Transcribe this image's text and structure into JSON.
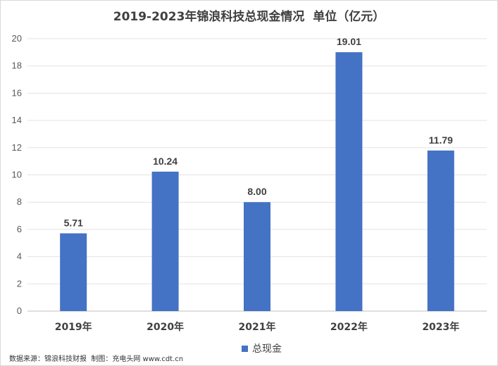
{
  "chart_data": {
    "type": "bar",
    "title": "2019-2023年锦浪科技总现金情况  单位（亿元）",
    "categories": [
      "2019年",
      "2020年",
      "2021年",
      "2022年",
      "2023年"
    ],
    "series": [
      {
        "name": "总现金",
        "values": [
          5.71,
          10.24,
          8.0,
          19.01,
          11.79
        ]
      }
    ],
    "data_labels": [
      "5.71",
      "10.24",
      "8.00",
      "19.01",
      "11.79"
    ],
    "ylim": [
      0,
      20
    ],
    "yticks": [
      0,
      2,
      4,
      6,
      8,
      10,
      12,
      14,
      16,
      18,
      20
    ],
    "grid": true,
    "legend_position": "bottom",
    "bar_color": "#4472C4"
  },
  "footer": {
    "source": "数据来源：锦浪科技财报  制图：充电头网 www.cdt.cn"
  }
}
